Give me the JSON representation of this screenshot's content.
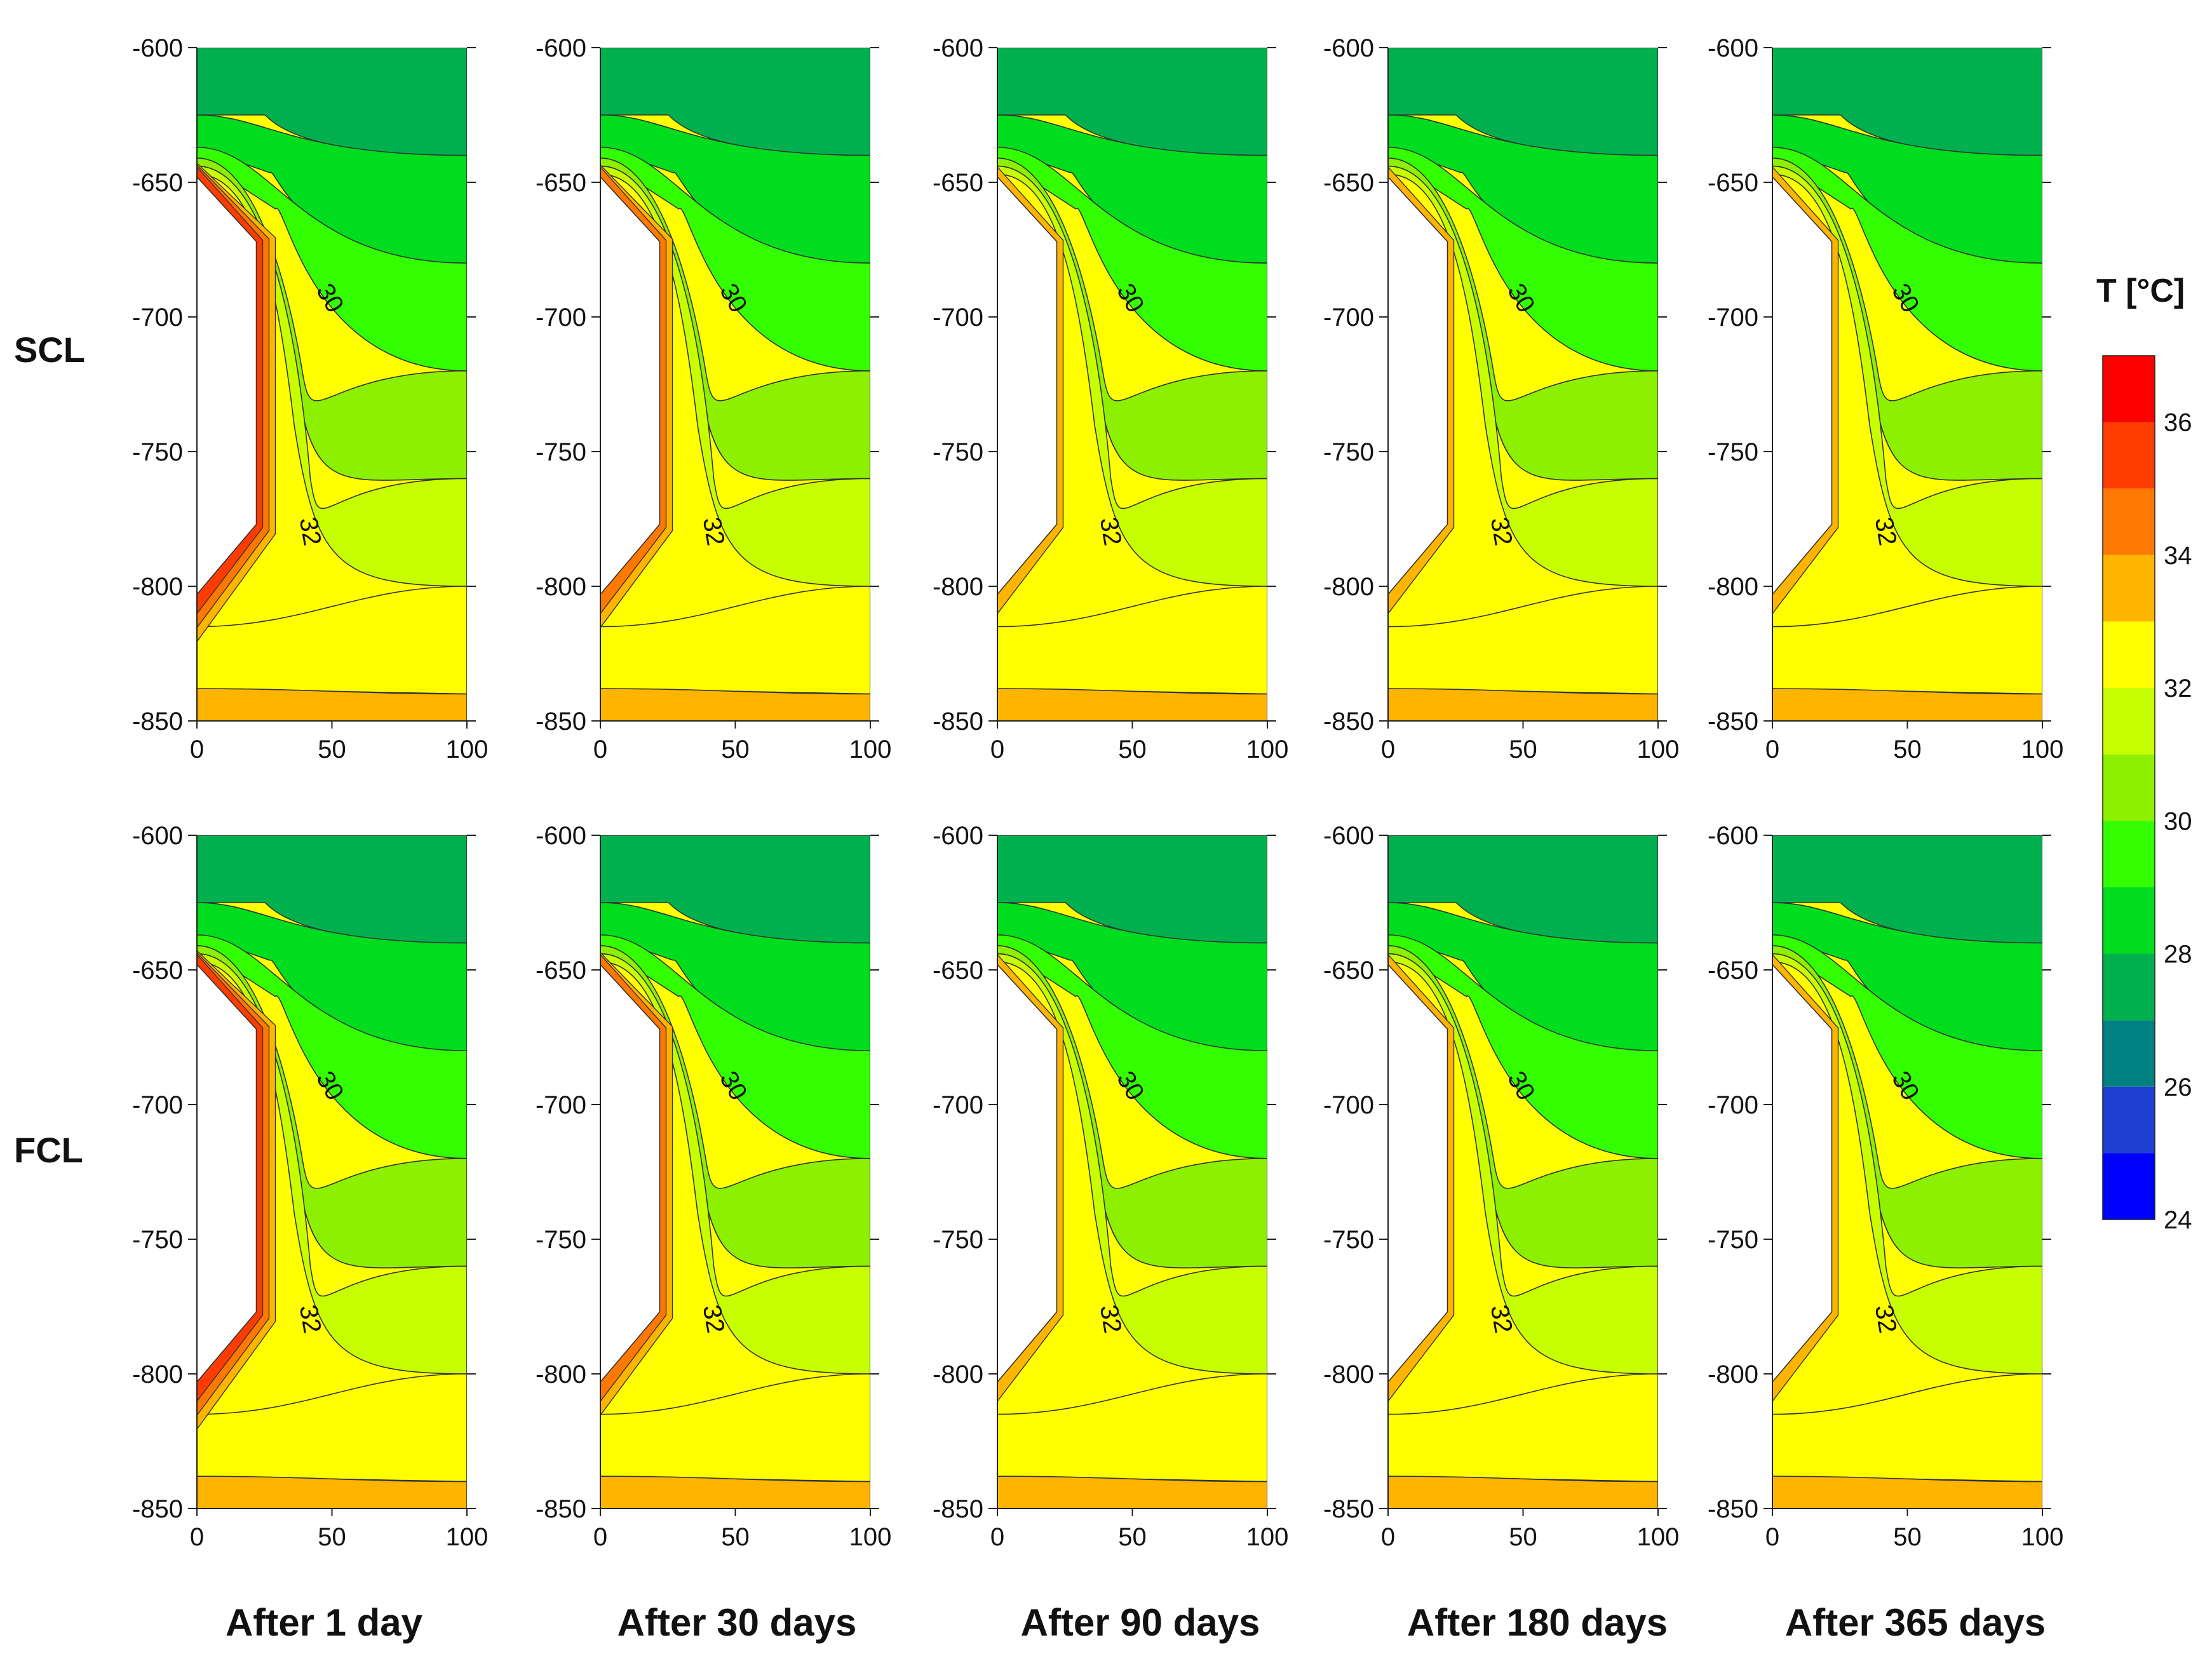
{
  "chart_data": {
    "type": "heatmap",
    "title": "",
    "rows": [
      "SCL",
      "FCL"
    ],
    "columns": [
      "After 1 day",
      "After 30 days",
      "After 90 days",
      "After 180 days",
      "After 365 days"
    ],
    "xlim": [
      0,
      100
    ],
    "ylim": [
      -850,
      -600
    ],
    "x_ticks": [
      "0",
      "50",
      "100"
    ],
    "y_ticks": [
      "-600",
      "-650",
      "-700",
      "-750",
      "-800",
      "-850"
    ],
    "contour_labels": [
      "30",
      "32"
    ],
    "legend": {
      "title": "T [°C]",
      "range": [
        24,
        37
      ],
      "step": 1,
      "tick_labels": [
        "24",
        "26",
        "28",
        "30",
        "32",
        "34",
        "36"
      ],
      "colors": [
        "#0000ff",
        "#1e3fd0",
        "#008080",
        "#00b04f",
        "#00dc1e",
        "#33ff00",
        "#8cf000",
        "#c8ff00",
        "#ffff00",
        "#ffb400",
        "#ff7800",
        "#ff3c00",
        "#ff0000"
      ]
    },
    "cavity_shape": {
      "x": [
        0,
        0,
        22,
        22,
        0
      ],
      "y": [
        -648,
        -803,
        -777,
        -672,
        -648
      ]
    },
    "temperature_bands": [
      {
        "range": "27-28",
        "color": "#00b04f",
        "y_left": [
          -600,
          -625
        ],
        "y_right": [
          -600,
          -640
        ]
      },
      {
        "range": "28-29",
        "color": "#00dc1e",
        "y_left": [
          -625,
          -637
        ],
        "y_right": [
          -640,
          -680
        ]
      },
      {
        "range": "29-30",
        "color": "#33ff00",
        "y_left": [
          -637,
          -641
        ],
        "y_right": [
          -680,
          -720
        ]
      },
      {
        "range": "30-31",
        "color": "#8cf000",
        "y_left": [
          -641,
          -644
        ],
        "y_right": [
          -720,
          -760
        ]
      },
      {
        "range": "31-32",
        "color": "#c8ff00",
        "y_left": [
          -644,
          -647
        ],
        "y_right": [
          -760,
          -800
        ]
      },
      {
        "range": "32-33",
        "color": "#ffff00",
        "y_left": [
          -815,
          -838
        ],
        "y_right": [
          -800,
          -840
        ]
      },
      {
        "range": "33-34",
        "color": "#ffb400",
        "y_left": [
          -838,
          -850
        ],
        "y_right": [
          -840,
          -850
        ]
      }
    ],
    "hot_layers_near_cavity": {
      "After 1 day": [
        "#ffb400",
        "#ff7800",
        "#ff3c00"
      ],
      "After 30 days": [
        "#ffb400",
        "#ff7800"
      ],
      "After 90 days": [
        "#ffb400"
      ],
      "After 180 days": [
        "#ffb400"
      ],
      "After 365 days": [
        "#ffb400"
      ]
    }
  }
}
